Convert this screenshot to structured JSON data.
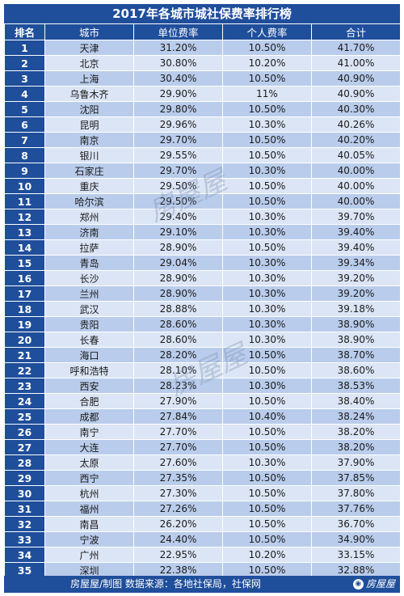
{
  "title": "2017年各城市城社保费率排行榜",
  "headers": [
    "排名",
    "城市",
    "单位费率",
    "个人费率",
    "合计"
  ],
  "rows": [
    [
      "1",
      "天津",
      "31.20%",
      "10.50%",
      "41.70%"
    ],
    [
      "2",
      "北京",
      "30.80%",
      "10.20%",
      "41.00%"
    ],
    [
      "3",
      "上海",
      "30.40%",
      "10.50%",
      "40.90%"
    ],
    [
      "4",
      "乌鲁木齐",
      "29.90%",
      "11%",
      "40.90%"
    ],
    [
      "5",
      "沈阳",
      "29.80%",
      "10.50%",
      "40.30%"
    ],
    [
      "6",
      "昆明",
      "29.96%",
      "10.30%",
      "40.26%"
    ],
    [
      "7",
      "南京",
      "29.70%",
      "10.50%",
      "40.20%"
    ],
    [
      "8",
      "银川",
      "29.55%",
      "10.50%",
      "40.05%"
    ],
    [
      "9",
      "石家庄",
      "29.70%",
      "10.30%",
      "40.00%"
    ],
    [
      "10",
      "重庆",
      "29.50%",
      "10.50%",
      "40.00%"
    ],
    [
      "11",
      "哈尔滨",
      "29.50%",
      "10.50%",
      "40.00%"
    ],
    [
      "12",
      "郑州",
      "29.40%",
      "10.30%",
      "39.70%"
    ],
    [
      "13",
      "济南",
      "29.10%",
      "10.30%",
      "39.40%"
    ],
    [
      "14",
      "拉萨",
      "28.90%",
      "10.50%",
      "39.40%"
    ],
    [
      "15",
      "青岛",
      "29.04%",
      "10.30%",
      "39.34%"
    ],
    [
      "16",
      "长沙",
      "28.90%",
      "10.30%",
      "39.20%"
    ],
    [
      "17",
      "兰州",
      "28.90%",
      "10.30%",
      "39.20%"
    ],
    [
      "18",
      "武汉",
      "28.88%",
      "10.30%",
      "39.18%"
    ],
    [
      "19",
      "贵阳",
      "28.60%",
      "10.30%",
      "38.90%"
    ],
    [
      "20",
      "长春",
      "28.60%",
      "10.30%",
      "38.90%"
    ],
    [
      "21",
      "海口",
      "28.20%",
      "10.50%",
      "38.70%"
    ],
    [
      "22",
      "呼和浩特",
      "28.10%",
      "10.50%",
      "38.60%"
    ],
    [
      "23",
      "西安",
      "28.23%",
      "10.30%",
      "38.53%"
    ],
    [
      "24",
      "合肥",
      "27.90%",
      "10.50%",
      "38.40%"
    ],
    [
      "25",
      "成都",
      "27.84%",
      "10.40%",
      "38.24%"
    ],
    [
      "26",
      "南宁",
      "27.70%",
      "10.50%",
      "38.20%"
    ],
    [
      "27",
      "大连",
      "27.70%",
      "10.50%",
      "38.20%"
    ],
    [
      "28",
      "太原",
      "27.60%",
      "10.30%",
      "37.90%"
    ],
    [
      "29",
      "西宁",
      "27.35%",
      "10.50%",
      "37.85%"
    ],
    [
      "30",
      "杭州",
      "27.30%",
      "10.50%",
      "37.80%"
    ],
    [
      "31",
      "福州",
      "27.26%",
      "10.50%",
      "37.76%"
    ],
    [
      "32",
      "南昌",
      "26.20%",
      "10.50%",
      "36.70%"
    ],
    [
      "33",
      "宁波",
      "24.40%",
      "10.50%",
      "34.90%"
    ],
    [
      "34",
      "广州",
      "22.95%",
      "10.20%",
      "33.15%"
    ],
    [
      "35",
      "深圳",
      "22.38%",
      "10.50%",
      "32.88%"
    ]
  ],
  "footer": {
    "source": "房屋屋/制图  数据来源：各地社保局，社保网",
    "brand": "房屋屋"
  },
  "watermark": "房屋屋",
  "colors": {
    "header_blue": "#1f4e9b",
    "row_odd": "#b9cceb",
    "row_even": "#dbe5f5"
  }
}
